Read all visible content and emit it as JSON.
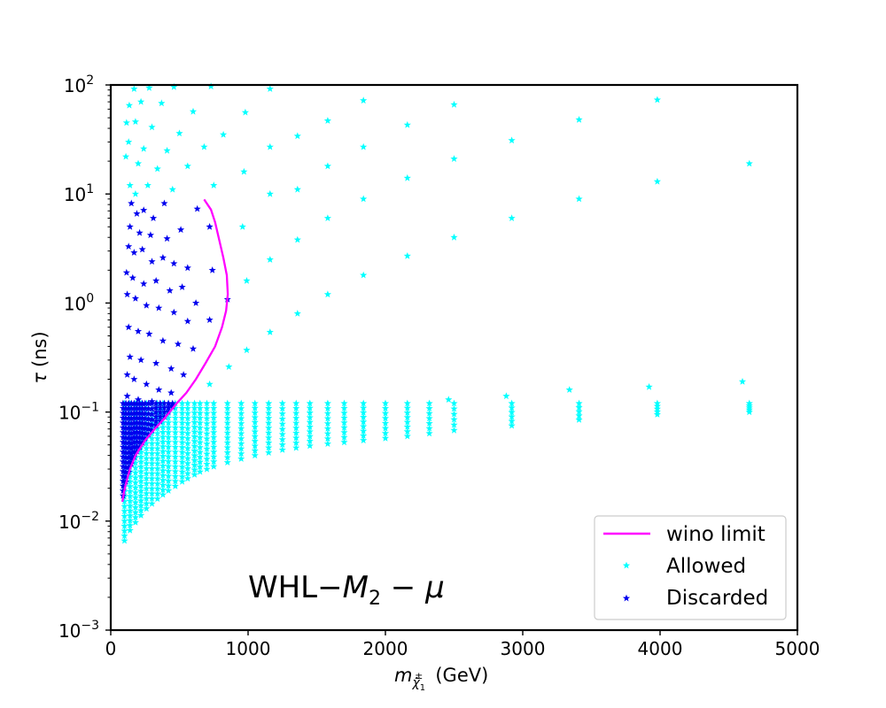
{
  "chart_data": {
    "type": "scatter",
    "xlabel": "m",
    "xlabel_sub": "χ̃",
    "xlabel_sub2": "1",
    "xlabel_sup": "±",
    "xlabel_unit": "(GeV)",
    "ylabel_sym": "τ",
    "ylabel_unit": "(ns)",
    "xlim": [
      0,
      5000
    ],
    "ylim": [
      0.001,
      100
    ],
    "yscale": "log",
    "grid": false,
    "legend_position": "bottom-right",
    "annotation": {
      "text_prefix": "WHL−",
      "m": "M",
      "sub": "2",
      "rest": " − μ"
    },
    "x_ticks": [
      0,
      1000,
      2000,
      3000,
      4000,
      5000
    ],
    "x_tick_labels": [
      "0",
      "1000",
      "2000",
      "3000",
      "4000",
      "5000"
    ],
    "y_ticks": [
      0.001,
      0.01,
      0.1,
      1,
      10,
      100
    ],
    "y_tick_labels": [
      {
        "base": "10",
        "exp": "−3"
      },
      {
        "base": "10",
        "exp": "−2"
      },
      {
        "base": "10",
        "exp": "−1"
      },
      {
        "base": "10",
        "exp": "0"
      },
      {
        "base": "10",
        "exp": "1"
      },
      {
        "base": "10",
        "exp": "2"
      }
    ],
    "series": [
      {
        "name": "wino limit",
        "kind": "line",
        "color": "#ff00ff",
        "points": [
          [
            85,
            0.015
          ],
          [
            95,
            0.018
          ],
          [
            110,
            0.022
          ],
          [
            140,
            0.03
          ],
          [
            180,
            0.04
          ],
          [
            250,
            0.055
          ],
          [
            320,
            0.07
          ],
          [
            400,
            0.09
          ],
          [
            480,
            0.12
          ],
          [
            550,
            0.15
          ],
          [
            620,
            0.2
          ],
          [
            690,
            0.28
          ],
          [
            760,
            0.4
          ],
          [
            810,
            0.6
          ],
          [
            840,
            0.85
          ],
          [
            852,
            1.2
          ],
          [
            845,
            1.8
          ],
          [
            820,
            2.6
          ],
          [
            790,
            3.8
          ],
          [
            760,
            5.5
          ],
          [
            730,
            7.2
          ],
          [
            680,
            8.9
          ]
        ]
      },
      {
        "name": "Allowed",
        "kind": "scatter",
        "marker": "star",
        "color": "#00ffff",
        "upper_points": [
          [
            170,
            92
          ],
          [
            280,
            94
          ],
          [
            460,
            96
          ],
          [
            730,
            97
          ],
          [
            1160,
            92
          ],
          [
            1840,
            72
          ],
          [
            2500,
            66
          ],
          [
            3980,
            73
          ],
          [
            135,
            65
          ],
          [
            220,
            70
          ],
          [
            370,
            68
          ],
          [
            600,
            57
          ],
          [
            980,
            56
          ],
          [
            1580,
            47
          ],
          [
            2160,
            43
          ],
          [
            3410,
            48
          ],
          [
            115,
            45
          ],
          [
            180,
            46
          ],
          [
            300,
            41
          ],
          [
            500,
            36
          ],
          [
            820,
            35
          ],
          [
            1360,
            34
          ],
          [
            2920,
            31
          ],
          [
            130,
            30
          ],
          [
            240,
            26
          ],
          [
            410,
            25
          ],
          [
            680,
            27
          ],
          [
            1160,
            27
          ],
          [
            1840,
            27
          ],
          [
            2500,
            21
          ],
          [
            4650,
            19
          ],
          [
            110,
            22
          ],
          [
            200,
            19
          ],
          [
            340,
            17
          ],
          [
            560,
            18
          ],
          [
            970,
            16
          ],
          [
            1580,
            18
          ],
          [
            2160,
            14
          ],
          [
            3980,
            13
          ],
          [
            140,
            12
          ],
          [
            270,
            12
          ],
          [
            450,
            11
          ],
          [
            750,
            12
          ],
          [
            1360,
            11
          ],
          [
            3410,
            9
          ],
          [
            180,
            10
          ],
          [
            1160,
            10
          ],
          [
            1840,
            9
          ],
          [
            960,
            5
          ],
          [
            1580,
            6
          ],
          [
            2920,
            6
          ],
          [
            1160,
            2.5
          ],
          [
            2500,
            4
          ],
          [
            1360,
            3.8
          ],
          [
            2160,
            2.7
          ],
          [
            990,
            1.6
          ],
          [
            1580,
            1.2
          ],
          [
            1840,
            1.8
          ],
          [
            1360,
            0.8
          ],
          [
            1160,
            0.54
          ],
          [
            990,
            0.37
          ],
          [
            860,
            0.26
          ],
          [
            720,
            0.18
          ],
          [
            2880,
            0.14
          ],
          [
            3340,
            0.16
          ],
          [
            3920,
            0.17
          ],
          [
            4600,
            0.19
          ],
          [
            2460,
            0.13
          ]
        ],
        "band_x": [
          100,
          140,
          180,
          220,
          260,
          300,
          340,
          380,
          420,
          470,
          520,
          560,
          610,
          650,
          700,
          750,
          850,
          950,
          1050,
          1150,
          1250,
          1350,
          1450,
          1580,
          1700,
          1840,
          2000,
          2160,
          2320,
          2500,
          2920,
          3410,
          3980,
          4650
        ],
        "band_top": 0.12,
        "band_bottom_curve": [
          [
            100,
            0.0066
          ],
          [
            120,
            0.0075
          ],
          [
            160,
            0.009
          ],
          [
            200,
            0.0105
          ],
          [
            260,
            0.013
          ],
          [
            340,
            0.016
          ],
          [
            420,
            0.019
          ],
          [
            520,
            0.023
          ],
          [
            640,
            0.028
          ],
          [
            760,
            0.032
          ],
          [
            900,
            0.036
          ],
          [
            1050,
            0.04
          ],
          [
            1250,
            0.045
          ],
          [
            1500,
            0.05
          ],
          [
            1840,
            0.055
          ],
          [
            2160,
            0.06
          ],
          [
            2500,
            0.068
          ],
          [
            2920,
            0.075
          ],
          [
            3410,
            0.085
          ],
          [
            3980,
            0.095
          ],
          [
            4650,
            0.1
          ]
        ]
      },
      {
        "name": "Discarded",
        "kind": "scatter",
        "marker": "star",
        "color": "#0000ee",
        "upper_points": [
          [
            150,
            8.2
          ],
          [
            190,
            6.6
          ],
          [
            240,
            7.1
          ],
          [
            310,
            6.0
          ],
          [
            390,
            8.2
          ],
          [
            140,
            5.0
          ],
          [
            210,
            4.4
          ],
          [
            290,
            4.2
          ],
          [
            410,
            3.9
          ],
          [
            510,
            4.7
          ],
          [
            630,
            7.3
          ],
          [
            720,
            5.0
          ],
          [
            130,
            3.3
          ],
          [
            170,
            2.9
          ],
          [
            230,
            3.1
          ],
          [
            300,
            2.4
          ],
          [
            380,
            2.6
          ],
          [
            460,
            2.3
          ],
          [
            560,
            2.1
          ],
          [
            740,
            2.0
          ],
          [
            115,
            1.9
          ],
          [
            160,
            1.7
          ],
          [
            240,
            1.5
          ],
          [
            330,
            1.6
          ],
          [
            430,
            1.3
          ],
          [
            520,
            1.4
          ],
          [
            620,
            1.0
          ],
          [
            850,
            1.08
          ],
          [
            120,
            1.2
          ],
          [
            180,
            1.1
          ],
          [
            260,
            0.95
          ],
          [
            350,
            0.9
          ],
          [
            460,
            0.82
          ],
          [
            560,
            0.68
          ],
          [
            720,
            0.7
          ],
          [
            130,
            0.6
          ],
          [
            200,
            0.55
          ],
          [
            280,
            0.52
          ],
          [
            380,
            0.45
          ],
          [
            490,
            0.42
          ],
          [
            600,
            0.38
          ],
          [
            140,
            0.32
          ],
          [
            220,
            0.3
          ],
          [
            330,
            0.28
          ],
          [
            440,
            0.25
          ],
          [
            530,
            0.22
          ],
          [
            120,
            0.22
          ],
          [
            170,
            0.2
          ],
          [
            260,
            0.18
          ],
          [
            350,
            0.16
          ],
          [
            440,
            0.15
          ],
          [
            120,
            0.14
          ],
          [
            200,
            0.13
          ],
          [
            300,
            0.125
          ]
        ],
        "band_x": [
          90,
          110,
          130,
          150,
          170,
          190,
          210,
          230,
          250,
          275,
          300,
          330,
          360,
          390,
          420,
          450
        ],
        "band_top": 0.12
      }
    ]
  }
}
